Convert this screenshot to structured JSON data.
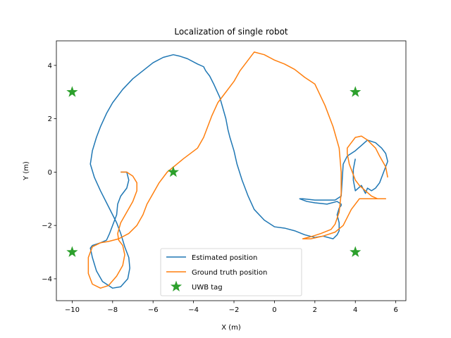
{
  "chart_data": {
    "type": "line",
    "title": "Localization of single robot",
    "xlabel": "X (m)",
    "ylabel": "Y (m)",
    "xlim": [
      -10.78,
      6.5
    ],
    "ylim": [
      -4.82,
      4.92
    ],
    "xticks": [
      -10,
      -8,
      -6,
      -4,
      -2,
      0,
      2,
      4,
      6
    ],
    "yticks": [
      -4,
      -2,
      0,
      2,
      4
    ],
    "grid": false,
    "legend_position": "lower-center",
    "series": [
      {
        "name": "Estimated position",
        "color": "#1f77b4",
        "kind": "line",
        "x": [
          -7.6,
          -7.3,
          -7.2,
          -7.3,
          -7.6,
          -7.75,
          -7.8,
          -8.0,
          -8.15,
          -8.3,
          -8.6,
          -8.8,
          -9.0,
          -9.1,
          -9.0,
          -8.8,
          -8.5,
          -8.0,
          -7.6,
          -7.25,
          -7.15,
          -7.2,
          -7.4,
          -7.6,
          -7.8,
          -8.2,
          -8.6,
          -8.9,
          -9.1,
          -9.0,
          -8.8,
          -8.6,
          -8.3,
          -8.0,
          -7.5,
          -7.0,
          -6.5,
          -6.0,
          -5.5,
          -5.0,
          -4.7,
          -4.3,
          -3.8,
          -3.5,
          -3.4,
          -3.2,
          -3.0,
          -2.7,
          -2.4,
          -2.3,
          -2.2,
          -2.0,
          -1.85,
          -1.6,
          -1.3,
          -1.0,
          -0.5,
          0.0,
          0.5,
          1.0,
          1.5,
          2.0,
          2.4,
          2.9,
          3.1,
          3.2,
          3.2,
          3.1,
          3.2,
          3.3,
          3.3,
          3.1,
          2.6,
          2.0,
          1.6,
          1.25,
          1.4,
          2.0,
          2.6,
          3.0,
          3.3,
          3.4,
          3.6,
          3.8,
          4.0,
          4.3,
          4.6,
          5.0,
          5.3,
          5.5,
          5.6,
          5.4,
          5.2,
          5.0,
          4.8,
          4.6,
          4.5,
          4.3,
          4.0,
          3.9,
          3.9,
          4.0
        ],
        "y": [
          0.0,
          0.0,
          -0.3,
          -0.6,
          -0.9,
          -1.2,
          -1.6,
          -2.0,
          -2.3,
          -2.55,
          -2.65,
          -2.7,
          -2.75,
          -2.85,
          -3.2,
          -3.7,
          -4.1,
          -4.35,
          -4.3,
          -4.0,
          -3.6,
          -3.2,
          -2.8,
          -2.3,
          -1.9,
          -1.3,
          -0.7,
          -0.2,
          0.3,
          0.8,
          1.3,
          1.7,
          2.2,
          2.6,
          3.1,
          3.5,
          3.8,
          4.1,
          4.3,
          4.4,
          4.35,
          4.25,
          4.05,
          3.95,
          3.8,
          3.6,
          3.3,
          2.8,
          2.0,
          1.6,
          1.3,
          0.8,
          0.3,
          -0.3,
          -0.9,
          -1.4,
          -1.8,
          -2.05,
          -2.1,
          -2.2,
          -2.35,
          -2.45,
          -2.4,
          -2.5,
          -2.35,
          -2.2,
          -1.9,
          -1.6,
          -1.35,
          -1.25,
          -1.2,
          -1.1,
          -1.2,
          -1.15,
          -1.1,
          -1.0,
          -1.0,
          -1.05,
          -1.05,
          -1.05,
          -0.9,
          0.3,
          0.6,
          0.7,
          0.8,
          1.0,
          1.2,
          1.1,
          0.9,
          0.7,
          0.4,
          0.0,
          -0.4,
          -0.6,
          -0.7,
          -0.6,
          -0.8,
          -0.5,
          -0.7,
          -0.3,
          0.1,
          0.5
        ]
      },
      {
        "name": "Ground truth position",
        "color": "#ff7f0e",
        "kind": "line",
        "x": [
          -7.6,
          -7.3,
          -7.0,
          -6.8,
          -6.8,
          -7.0,
          -7.3,
          -7.6,
          -7.75,
          -7.7,
          -7.5,
          -7.4,
          -7.5,
          -7.8,
          -8.2,
          -8.6,
          -9.0,
          -9.2,
          -9.2,
          -9.0,
          -8.6,
          -8.2,
          -7.7,
          -7.2,
          -6.8,
          -6.5,
          -6.3,
          -6.0,
          -5.7,
          -5.3,
          -4.5,
          -3.8,
          -3.5,
          -3.3,
          -3.1,
          -2.8,
          -2.4,
          -2.0,
          -1.7,
          -1.3,
          -1.0,
          -0.5,
          0.0,
          0.5,
          1.0,
          1.5,
          2.0,
          2.5,
          2.9,
          3.2,
          3.3,
          3.3,
          3.2,
          3.0,
          2.8,
          2.3,
          1.9,
          1.4,
          1.8,
          2.4,
          3.0,
          3.4,
          3.8,
          4.2,
          4.6,
          5.0,
          5.3,
          5.5,
          5.5,
          5.3,
          5.1,
          4.8,
          4.5,
          4.2,
          4.0,
          3.7,
          3.6,
          3.6,
          3.8,
          4.0,
          4.3,
          4.6,
          5.0,
          5.2,
          5.5,
          5.6
        ],
        "y": [
          0.0,
          0.0,
          -0.15,
          -0.4,
          -0.7,
          -1.1,
          -1.5,
          -1.9,
          -2.3,
          -2.55,
          -2.75,
          -3.1,
          -3.5,
          -3.9,
          -4.25,
          -4.35,
          -4.2,
          -3.8,
          -3.2,
          -2.8,
          -2.65,
          -2.6,
          -2.5,
          -2.3,
          -2.0,
          -1.6,
          -1.2,
          -0.8,
          -0.4,
          0.0,
          0.5,
          0.9,
          1.3,
          1.7,
          2.1,
          2.6,
          3.0,
          3.4,
          3.8,
          4.2,
          4.5,
          4.4,
          4.2,
          4.05,
          3.85,
          3.55,
          3.3,
          2.5,
          1.7,
          0.9,
          0.0,
          -0.8,
          -1.5,
          -1.95,
          -2.15,
          -2.3,
          -2.4,
          -2.5,
          -2.5,
          -2.4,
          -2.25,
          -2.0,
          -1.4,
          -1.0,
          -1.0,
          -1.0,
          -1.0,
          -1.0,
          -1.0,
          -1.0,
          -1.0,
          -0.9,
          -0.7,
          -0.5,
          -0.3,
          0.3,
          0.7,
          0.9,
          1.1,
          1.3,
          1.35,
          1.2,
          0.9,
          0.6,
          0.2,
          -0.2
        ]
      },
      {
        "name": "UWB tag",
        "color": "#2ca02c",
        "kind": "marker",
        "x": [
          -10,
          4,
          -5,
          -10,
          4
        ],
        "y": [
          3,
          3,
          0,
          -3,
          -3
        ]
      }
    ]
  }
}
